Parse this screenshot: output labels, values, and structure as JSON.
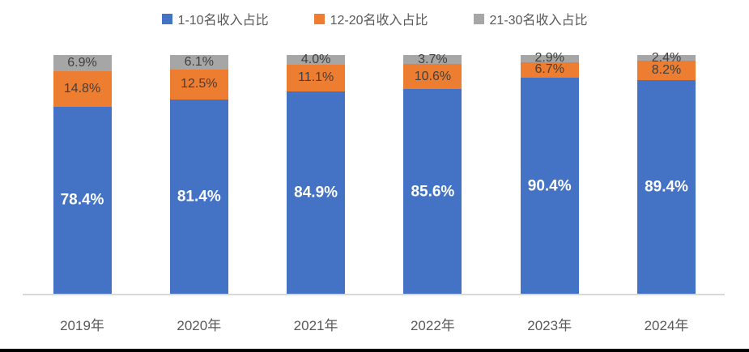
{
  "colors": {
    "background": "#FFFFFF",
    "blue": "#4472C4",
    "orange": "#ED7D31",
    "gray": "#A6A6A6",
    "axis_line": "#D9D9D9",
    "axis_text": "#595959",
    "inside_label_dark": "#404040",
    "inside_label_white": "#FFFFFF",
    "bottom_edge": "#000000"
  },
  "legend": [
    {
      "label": "1-10名收入占比",
      "color": "#4472C4"
    },
    {
      "label": "12-20名收入占比",
      "color": "#ED7D31"
    },
    {
      "label": "21-30名收入占比",
      "color": "#A6A6A6"
    }
  ],
  "chart_data": {
    "type": "bar",
    "stacked": true,
    "grid": false,
    "legend_position": "top",
    "ylim": [
      0,
      100
    ],
    "categories": [
      "2019年",
      "2020年",
      "2021年",
      "2022年",
      "2023年",
      "2024年"
    ],
    "series": [
      {
        "name": "1-10名收入占比",
        "color": "#4472C4",
        "label_style": "inside-white-bold",
        "values": [
          78.4,
          81.4,
          84.9,
          85.6,
          90.4,
          89.4
        ],
        "labels": [
          "78.4%",
          "81.4%",
          "84.9%",
          "85.6%",
          "90.4%",
          "89.4%"
        ]
      },
      {
        "name": "12-20名收入占比",
        "color": "#ED7D31",
        "label_style": "inside-dark",
        "values": [
          14.8,
          12.5,
          11.1,
          10.6,
          6.7,
          8.2
        ],
        "labels": [
          "14.8%",
          "12.5%",
          "11.1%",
          "10.6%",
          "6.7%",
          "8.2%"
        ]
      },
      {
        "name": "21-30名收入占比",
        "color": "#A6A6A6",
        "label_style": "inside-dark",
        "values": [
          6.9,
          6.1,
          4.0,
          3.7,
          2.9,
          2.4
        ],
        "labels": [
          "6.9%",
          "6.1%",
          "4.0%",
          "3.7%",
          "2.9%",
          "2.4%"
        ]
      }
    ]
  }
}
